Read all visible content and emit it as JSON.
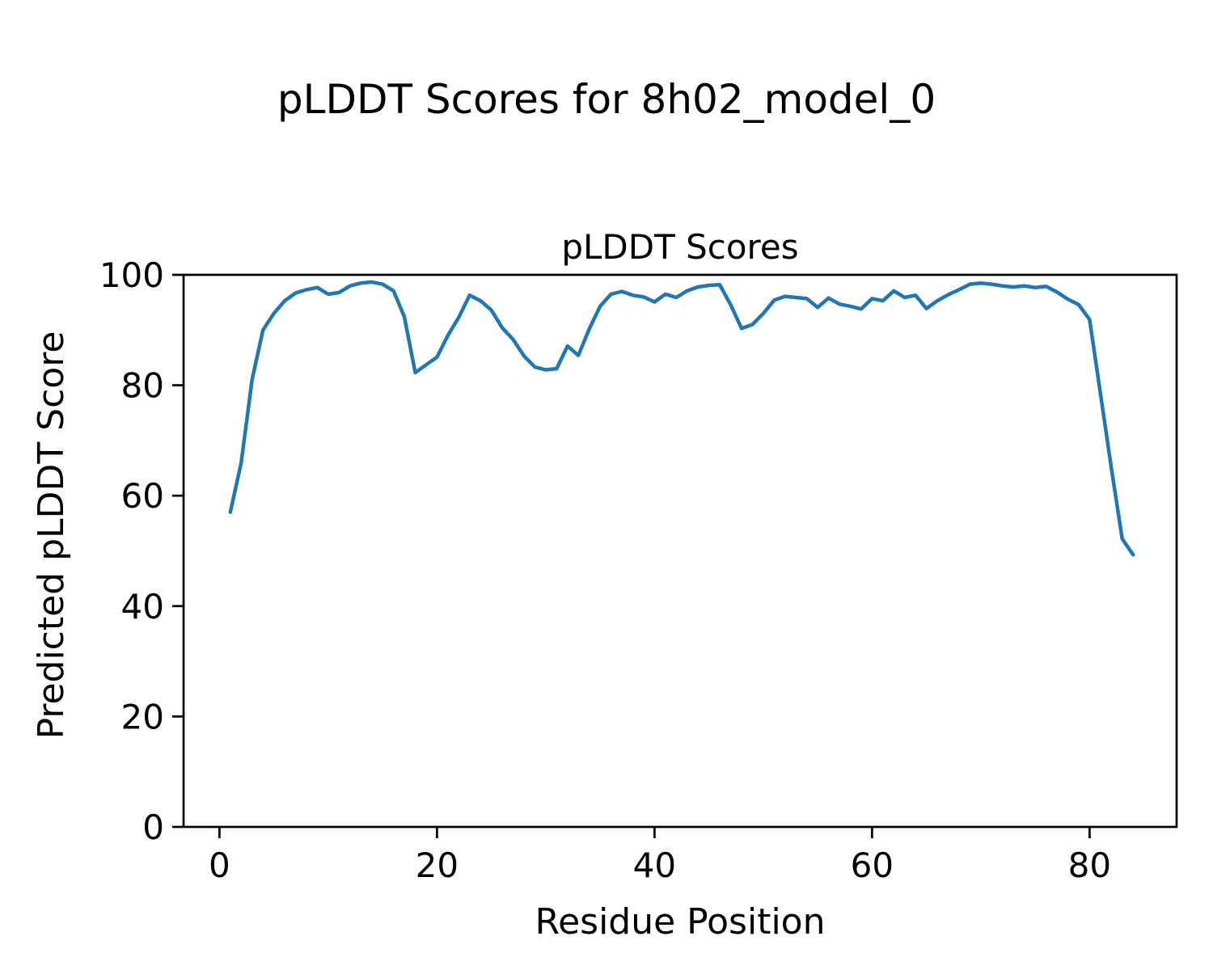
{
  "figure": {
    "suptitle": "pLDDT Scores for 8h02_model_0"
  },
  "chart_data": {
    "type": "line",
    "title": "pLDDT Scores",
    "xlabel": "Residue Position",
    "ylabel": "Predicted pLDDT Score",
    "xlim": [
      -3.3,
      88.0
    ],
    "ylim": [
      0,
      100
    ],
    "xticks": [
      0,
      20,
      40,
      60,
      80
    ],
    "yticks": [
      0,
      20,
      40,
      60,
      80,
      100
    ],
    "grid": false,
    "legend_position": "none",
    "line_color": "#1f77b4",
    "line_width": 4.5,
    "series": [
      {
        "name": "pLDDT",
        "x": [
          1,
          2,
          3,
          4,
          5,
          6,
          7,
          8,
          9,
          10,
          11,
          12,
          13,
          14,
          15,
          16,
          17,
          18,
          19,
          20,
          21,
          22,
          23,
          24,
          25,
          26,
          27,
          28,
          29,
          30,
          31,
          32,
          33,
          34,
          35,
          36,
          37,
          38,
          39,
          40,
          41,
          42,
          43,
          44,
          45,
          46,
          47,
          48,
          49,
          50,
          51,
          52,
          53,
          54,
          55,
          56,
          57,
          58,
          59,
          60,
          61,
          62,
          63,
          64,
          65,
          66,
          67,
          68,
          69,
          70,
          71,
          72,
          73,
          74,
          75,
          76,
          77,
          78,
          79,
          80,
          81,
          82,
          83,
          84
        ],
        "y": [
          57.0,
          66.0,
          81.0,
          90.0,
          93.0,
          95.3,
          96.7,
          97.3,
          97.7,
          96.5,
          96.8,
          98.0,
          98.5,
          98.7,
          98.3,
          97.1,
          92.4,
          82.3,
          83.7,
          85.1,
          89.0,
          92.3,
          96.3,
          95.3,
          93.6,
          90.4,
          88.3,
          85.3,
          83.3,
          82.8,
          83.0,
          87.1,
          85.4,
          90.2,
          94.3,
          96.5,
          97.0,
          96.3,
          96.0,
          95.1,
          96.5,
          95.9,
          97.1,
          97.8,
          98.1,
          98.2,
          94.6,
          90.3,
          91.0,
          93.0,
          95.4,
          96.1,
          95.9,
          95.7,
          94.1,
          95.8,
          94.7,
          94.3,
          93.8,
          95.7,
          95.3,
          97.1,
          95.9,
          96.3,
          93.9,
          95.3,
          96.4,
          97.3,
          98.3,
          98.5,
          98.3,
          98.0,
          97.8,
          98.0,
          97.7,
          97.9,
          96.9,
          95.6,
          94.6,
          91.9,
          78.5,
          65.0,
          52.2,
          49.3
        ]
      }
    ]
  }
}
